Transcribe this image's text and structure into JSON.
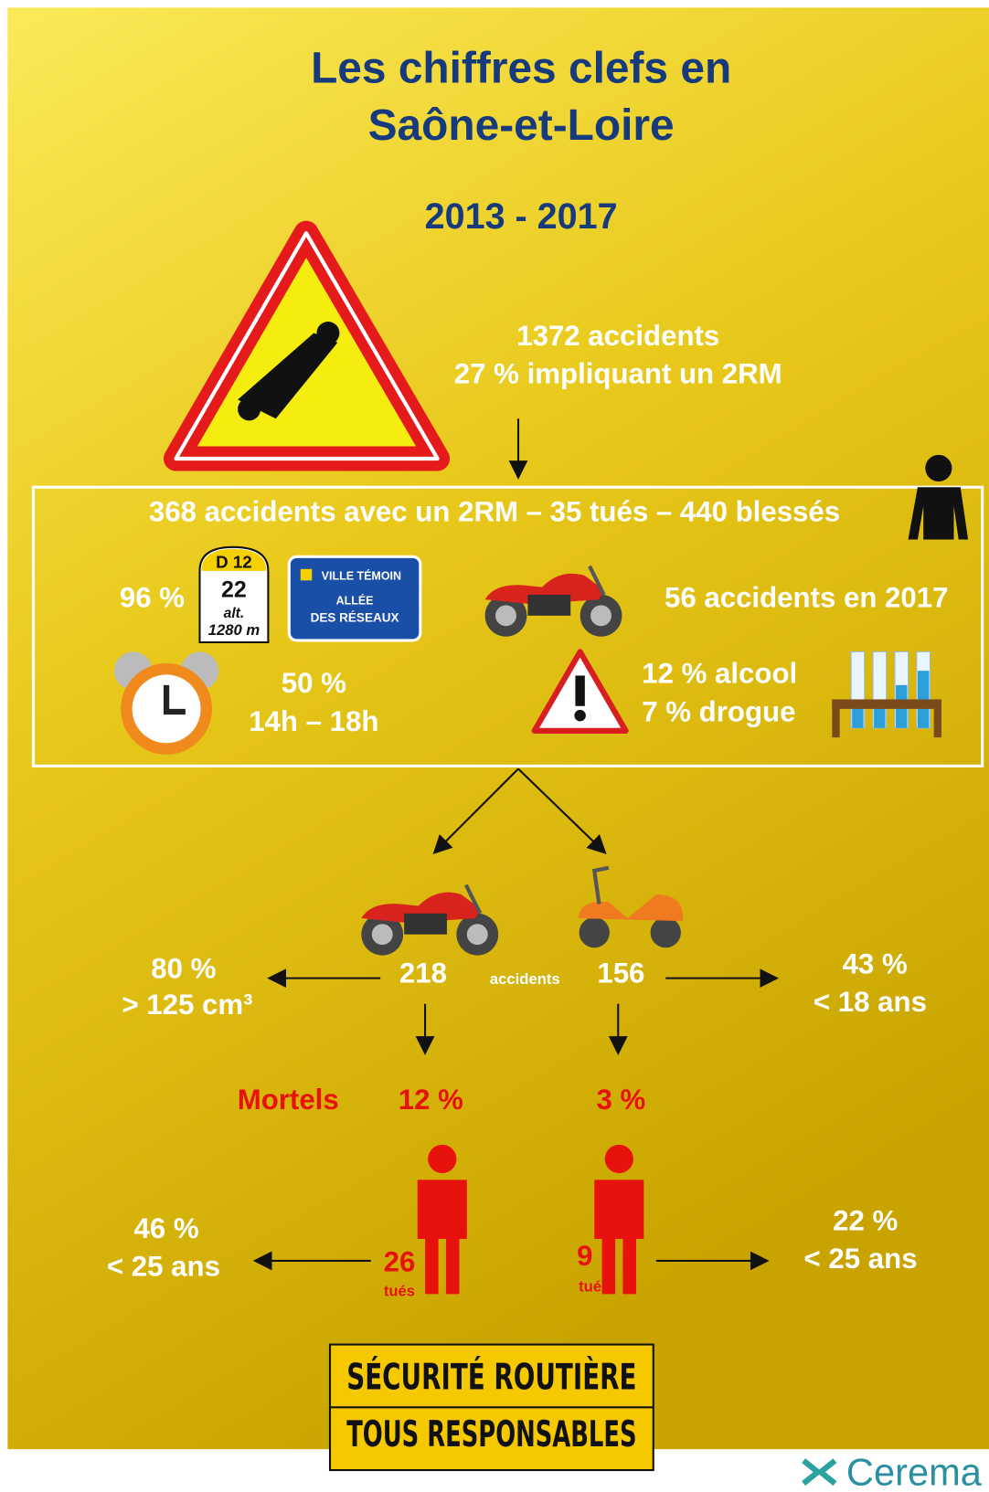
{
  "header": {
    "title_lines": [
      "Les chiffres clefs en",
      "Saône-et-Loire"
    ],
    "period": "2013 - 2017"
  },
  "summary": {
    "lines": [
      "1372 accidents",
      "27 % impliquant un 2RM"
    ]
  },
  "box": {
    "headline": "368 accidents avec un 2RM – 35 tués – 440 blessés",
    "road": "96 %",
    "milestone": {
      "road": "D 12",
      "km": "22",
      "alt": "alt.",
      "height": "1280 m"
    },
    "street_sign": {
      "top": "VILLE TÉMOIN",
      "line1": "ALLÉE",
      "line2": "DES RÉSEAUX"
    },
    "year": "56 accidents en 2017",
    "time": [
      "50 %",
      "14h – 18h"
    ],
    "substances": [
      "12 % alcool",
      "7 % drogue"
    ]
  },
  "split": {
    "moto": {
      "accidents": "218",
      "power": [
        "80 %",
        "> 125 cm³"
      ],
      "fatal": "12 %",
      "killed": "26",
      "killed_unit": "tués",
      "young": [
        "46 %",
        "< 25 ans"
      ]
    },
    "accidents_label": "accidents",
    "fatal_label": "Mortels",
    "scooter": {
      "accidents": "156",
      "age": [
        "43 %",
        "< 18 ans"
      ],
      "fatal": "3 %",
      "killed": "9",
      "killed_unit": "tués",
      "young": [
        "22 %",
        "< 25 ans"
      ]
    }
  },
  "footer": {
    "slogan": [
      "SÉCURITÉ ROUTIÈRE",
      "TOUS RESPONSABLES"
    ],
    "logo": "Cerema"
  }
}
